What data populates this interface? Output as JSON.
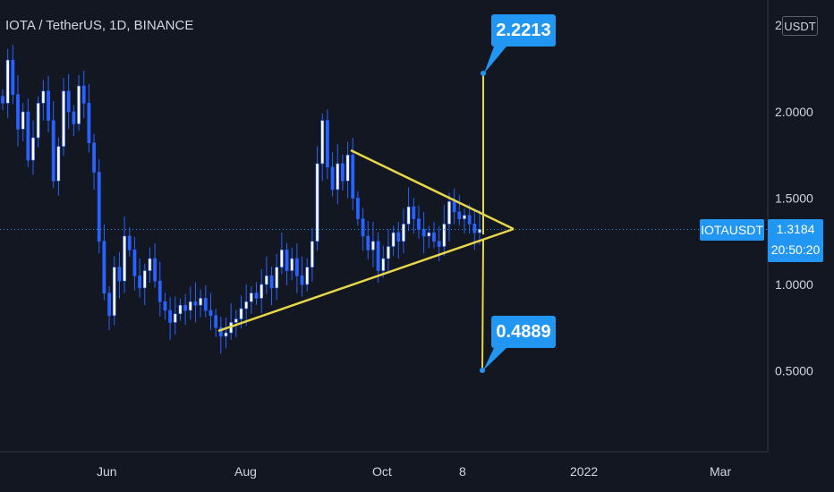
{
  "header": {
    "title": "IOTA / TetherUS, 1D, BINANCE"
  },
  "price_axis": {
    "currency": "USDT",
    "label_2": "2",
    "current_price": "1.3184",
    "countdown": "20:50:20",
    "symbol": "IOTAUSDT"
  },
  "targets": {
    "upper": "2.2213",
    "lower": "0.4889"
  },
  "colors": {
    "background": "#131722",
    "candle": "#2962ff",
    "accent": "#2196f3",
    "drawing": "#e6d64a"
  },
  "chart_data": {
    "type": "candlestick",
    "title": "IOTA / TetherUS, 1D, BINANCE",
    "y_ticks": [
      "2.0000",
      "1.5000",
      "1.0000",
      "0.5000"
    ],
    "y_tick_values": [
      2.0,
      1.5,
      1.0,
      0.5
    ],
    "x_ticks": [
      "Jun",
      "Aug",
      "Oct",
      "8",
      "2022",
      "Mar"
    ],
    "current_price": 1.3184,
    "closes": [
      2.05,
      2.3,
      2.1,
      1.9,
      2.0,
      1.72,
      1.85,
      2.05,
      2.12,
      1.95,
      1.6,
      1.8,
      2.12,
      2.0,
      1.93,
      2.15,
      2.05,
      1.82,
      1.65,
      1.25,
      0.95,
      0.82,
      1.1,
      1.02,
      1.28,
      1.2,
      1.05,
      0.98,
      1.08,
      1.15,
      1.02,
      0.9,
      0.85,
      0.78,
      0.83,
      0.88,
      0.85,
      0.9,
      0.88,
      0.92,
      0.85,
      0.82,
      0.75,
      0.7,
      0.72,
      0.78,
      0.8,
      0.86,
      0.9,
      0.95,
      0.92,
      1.0,
      1.05,
      0.98,
      1.1,
      1.2,
      1.08,
      1.15,
      1.05,
      1.0,
      1.1,
      1.25,
      1.7,
      1.95,
      1.68,
      1.55,
      1.7,
      1.6,
      1.75,
      1.5,
      1.38,
      1.28,
      1.2,
      1.25,
      1.08,
      1.15,
      1.22,
      1.3,
      1.25,
      1.35,
      1.45,
      1.38,
      1.32,
      1.28,
      1.3,
      1.25,
      1.22,
      1.35,
      1.48,
      1.42,
      1.38,
      1.4,
      1.35,
      1.3,
      1.32
    ],
    "patterns": [
      {
        "name": "symmetrical-triangle",
        "upper_line": [
          [
            1.78
          ],
          [
            1.4
          ]
        ],
        "lower_line": [
          [
            0.72
          ],
          [
            1.34
          ]
        ]
      }
    ],
    "targets": {
      "upper": 2.2213,
      "lower": 0.4889
    }
  }
}
